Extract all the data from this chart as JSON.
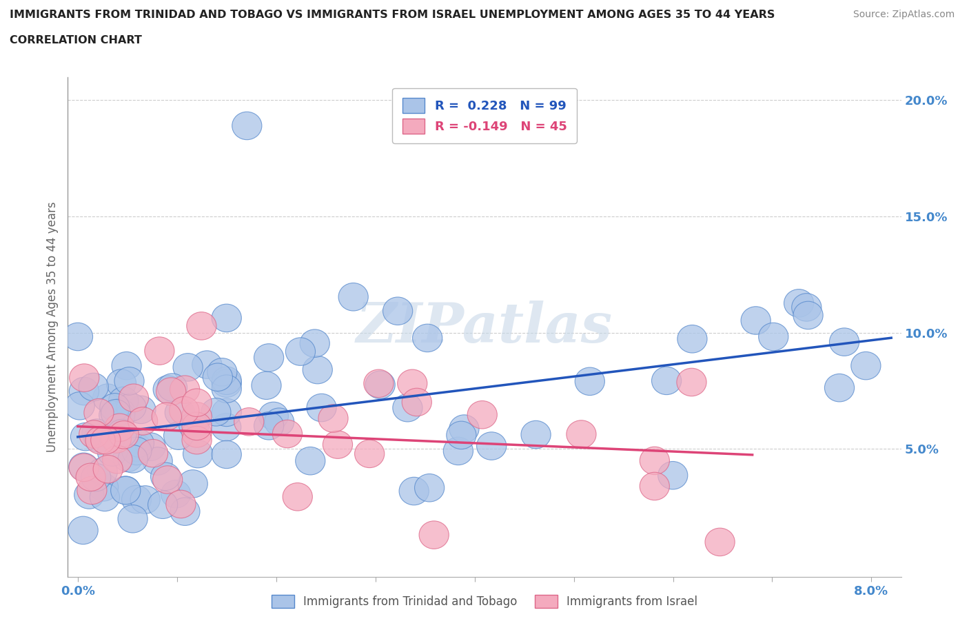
{
  "title_line1": "IMMIGRANTS FROM TRINIDAD AND TOBAGO VS IMMIGRANTS FROM ISRAEL UNEMPLOYMENT AMONG AGES 35 TO 44 YEARS",
  "title_line2": "CORRELATION CHART",
  "source": "Source: ZipAtlas.com",
  "ylabel": "Unemployment Among Ages 35 to 44 years",
  "xlim": [
    -0.001,
    0.083
  ],
  "ylim": [
    -0.005,
    0.21
  ],
  "series1_color": "#aac4e8",
  "series1_edge": "#5588cc",
  "series1_line_color": "#2255bb",
  "series2_color": "#f4aabe",
  "series2_edge": "#dd6688",
  "series2_line_color": "#dd4477",
  "R1": 0.228,
  "N1": 99,
  "R2": -0.149,
  "N2": 45,
  "legend_label1": "Immigrants from Trinidad and Tobago",
  "legend_label2": "Immigrants from Israel",
  "watermark_text": "ZIPatlas",
  "background_color": "#ffffff",
  "grid_color": "#cccccc",
  "title_color": "#222222",
  "tick_color": "#4488cc",
  "label_color": "#666666"
}
